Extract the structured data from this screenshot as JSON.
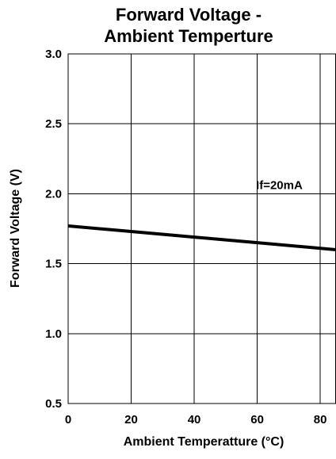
{
  "chart_data": {
    "type": "line",
    "title_lines": [
      "Forward Voltage -",
      "Ambient Temperture"
    ],
    "xlabel": "Ambient Temperatture (°C)",
    "ylabel": "Forward Voltage (V)",
    "xlim": [
      0,
      85
    ],
    "ylim": [
      0.5,
      3.0
    ],
    "x_ticks": [
      0,
      20,
      40,
      60,
      80
    ],
    "x_tick_labels": [
      "0",
      "20",
      "40",
      "60",
      "80"
    ],
    "y_ticks": [
      3.0,
      2.5,
      2.0,
      1.5,
      1.0,
      0.5
    ],
    "y_tick_labels": [
      "3.0",
      "2.5",
      "2.0",
      "1.5",
      "1.0",
      "0.5"
    ],
    "grid": true,
    "series": [
      {
        "x": [
          0,
          20,
          40,
          60,
          85
        ],
        "y": [
          1.77,
          1.73,
          1.69,
          1.65,
          1.6
        ]
      }
    ],
    "annotations": [
      {
        "text": "If=20mA",
        "x": 67,
        "y": 2.0
      }
    ],
    "colors": {
      "line": "#000000",
      "grid": "#000000",
      "background": "#ffffff"
    }
  }
}
